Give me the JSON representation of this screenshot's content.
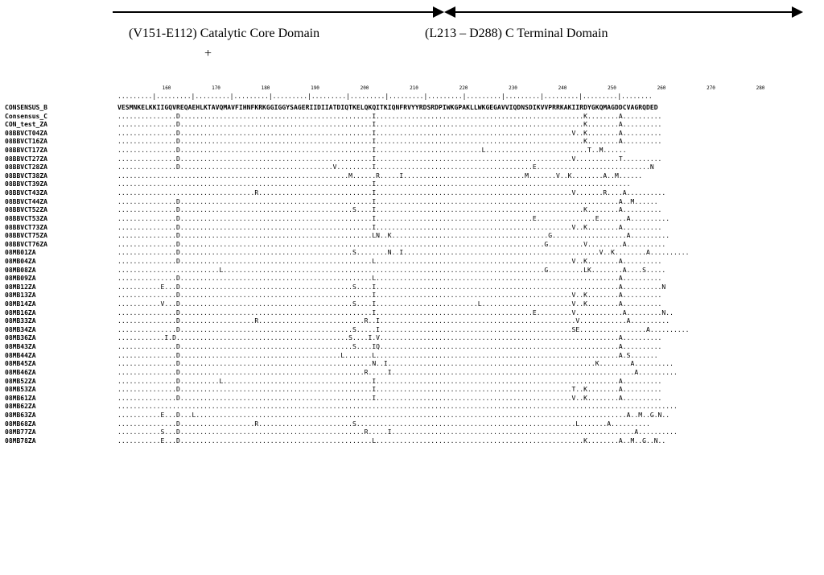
{
  "domains": {
    "core": "(V151-E112)  Catalytic Core Domain",
    "plus": "+",
    "cterm": "(L213 – D288) C Terminal Domain"
  },
  "ruler": [
    "160",
    "170",
    "180",
    "190",
    "200",
    "210",
    "220",
    "230",
    "240",
    "250",
    "260",
    "270",
    "280"
  ],
  "sequences": [
    {
      "name": "CONSENSUS_B",
      "seq": "VESMNKELKKIIGQVREQAEHLKTAVQMAVFIHNFKRKGGIGGYSAGERIIDIIATDIQTKELQKQITKIQNFRVYYRDSRDPIWKGPAKLLWKGEGAVVIQDNSDIKVVPRRKAKIIRDYGKQMAGDDCVAGRQDED"
    },
    {
      "name": "Consensus_C",
      "seq": "...............D.................................................I.....................................................K........A.........."
    },
    {
      "name": "CON_test_ZA",
      "seq": "...............D.................................................I.....................................................K........A.........."
    },
    {
      "name": "08BBVCT04ZA",
      "seq": "...............D.................................................I..................................................V..K........A.........."
    },
    {
      "name": "08BBVCT16ZA",
      "seq": "...............D.................................................I.....................................................K........A.........."
    },
    {
      "name": "08BBVCT17ZA",
      "seq": "...............D.................................................I...........................L..........................T..M......"
    },
    {
      "name": "08BBVCT27ZA",
      "seq": "...............D.................................................I..................................................V...........T.........."
    },
    {
      "name": "08BBVCT28ZA",
      "seq": "...............D.......................................V.........I........................................E.............................N"
    },
    {
      "name": "08BBVCT38ZA",
      "seq": "...........................................................M......R.....I...............................M.......V..K........A..M......"
    },
    {
      "name": "08BBVCT39ZA",
      "seq": ".................................................................I................................................................."
    },
    {
      "name": "08BBVCT43ZA",
      "seq": "...................................R.............................I..................................................V.......R....A.........."
    },
    {
      "name": "08BBVCT44ZA",
      "seq": "...............D.................................................I..............................................................A..M......"
    },
    {
      "name": "08BBVCT52ZA",
      "seq": "...............D............................................S....I.....................................................K........A.........."
    },
    {
      "name": "08BBVCT53ZA",
      "seq": "...............D.................................................I........................................E...............E.......A.........."
    },
    {
      "name": "08BBVCT73ZA",
      "seq": "...............D.................................................I..................................................V..K........A.........."
    },
    {
      "name": "08BBVCT75ZA",
      "seq": "...............D.................................................LN..K........................................G...................A.........."
    },
    {
      "name": "08BBVCT76ZA",
      "seq": "...............D.............................................................................................G.........V.........A.........."
    },
    {
      "name": "08MB01ZA",
      "seq": "...............D............................................S........N..I..................................................V..K........A.........."
    },
    {
      "name": "08MB04ZA",
      "seq": "...............D.................................................L..................................................V..K........A.........."
    },
    {
      "name": "08MB08ZA",
      "seq": "..........................L..................................................................................G.........LK........A....S....."
    },
    {
      "name": "08MB09ZA",
      "seq": "...............D.................................................L..............................................................A.........."
    },
    {
      "name": "08MB12ZA",
      "seq": "...........E...D............................................S....I..............................................................A..........N"
    },
    {
      "name": "08MB13ZA",
      "seq": "...............D.................................................I..................................................V..K........A.........."
    },
    {
      "name": "08MB14ZA",
      "seq": "...........V...D............................................S....I..........................L.......................V..K........A.........."
    },
    {
      "name": "08MB16ZA",
      "seq": "...............D.................................................I........................................E.........V............A.........N.."
    },
    {
      "name": "08MB33ZA",
      "seq": "...............D...................R...........................R..I..................................................V............A.........."
    },
    {
      "name": "08MB34ZA",
      "seq": "...............D............................................S.....I.................................................SE.................A.........."
    },
    {
      "name": "08MB36ZA",
      "seq": "............I.D............................................S....I.V.............................................................A.........."
    },
    {
      "name": "08MB43ZA",
      "seq": "...............D............................................S....IQ.............................................................A.........."
    },
    {
      "name": "08MB44ZA",
      "seq": "...............D.........................................L.......L..............................................................A.S......."
    },
    {
      "name": "08MB45ZA",
      "seq": "...............D.................................................N..I.....................................................K........A.........."
    },
    {
      "name": "08MB46ZA",
      "seq": "...............D...............................................R.....I..............................................................A.........."
    },
    {
      "name": "08MB52ZA",
      "seq": "...............D..........L......................................I..............................................................A.........."
    },
    {
      "name": "08MB53ZA",
      "seq": "...............D.................................................I..................................................T..K........A.........."
    },
    {
      "name": "08MB61ZA",
      "seq": "...............D.................................................I..................................................V..K........A.........."
    },
    {
      "name": "08MB62ZA",
      "seq": "..............................................................................................................................................."
    },
    {
      "name": "08MB63ZA",
      "seq": "...........E...D...L..............................................................................................................A..M..G.N.."
    },
    {
      "name": "08MB68ZA",
      "seq": "...............D...................R........................S........................................................L.......A.........."
    },
    {
      "name": "08MB77ZA",
      "seq": "...........S...D...............................................R.....I..............................................................A.........."
    },
    {
      "name": "08MB78ZA",
      "seq": "...........E...D.................................................L.....................................................K........A..M..G..N.."
    }
  ]
}
